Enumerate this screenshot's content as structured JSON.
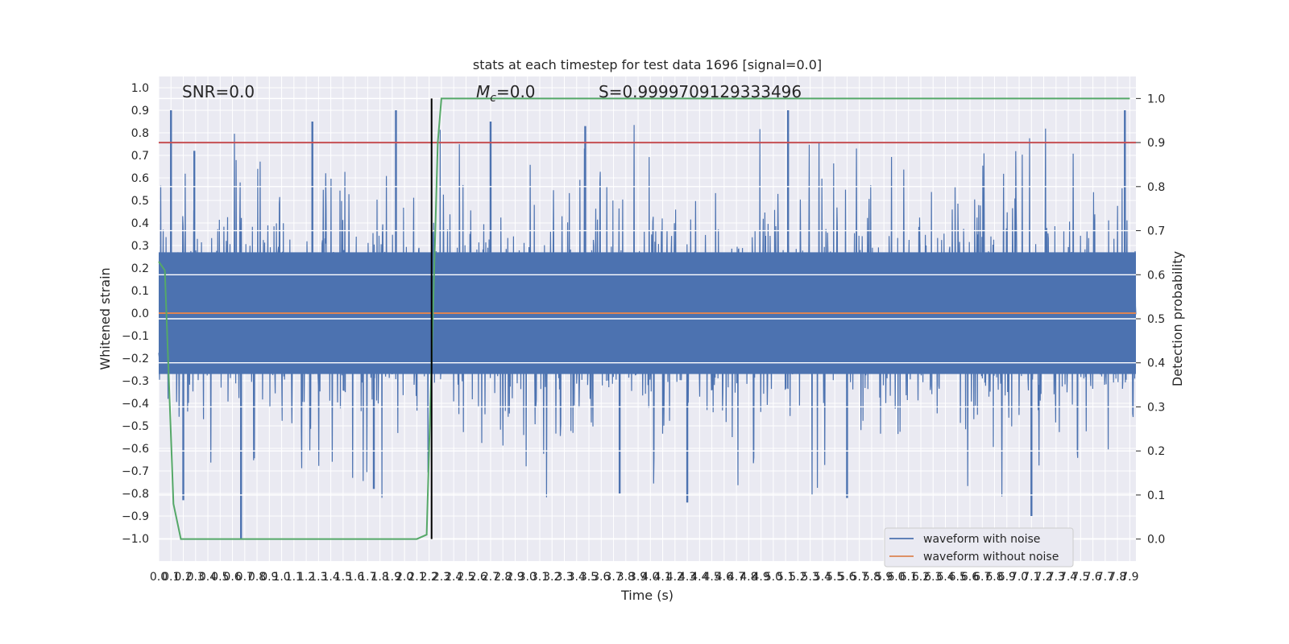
{
  "chart_data": {
    "type": "line",
    "title": "stats at each timestep for test data 1696 [signal=0.0]",
    "xlabel": "Time (s)",
    "ylabel": "Whitened strain",
    "ylabel_right": "Detection probability",
    "xlim": [
      0.0,
      7.95
    ],
    "ylim": [
      -1.1,
      1.05
    ],
    "ylim_right": [
      -0.05,
      1.05
    ],
    "x_ticks": [
      0.0,
      0.1,
      0.2,
      0.3,
      0.4,
      0.5,
      0.6,
      0.7,
      0.8,
      0.9,
      1.0,
      1.1,
      1.2,
      1.3,
      1.4,
      1.5,
      1.6,
      1.7,
      1.8,
      1.9,
      2.0,
      2.1,
      2.2,
      2.3,
      2.4,
      2.5,
      2.6,
      2.7,
      2.8,
      2.9,
      3.0,
      3.1,
      3.2,
      3.3,
      3.4,
      3.5,
      3.6,
      3.7,
      3.8,
      3.9,
      4.0,
      4.1,
      4.2,
      4.3,
      4.4,
      4.5,
      4.6,
      4.7,
      4.8,
      4.9,
      5.0,
      5.1,
      5.2,
      5.3,
      5.4,
      5.5,
      5.6,
      5.7,
      5.8,
      5.9,
      6.0,
      6.1,
      6.2,
      6.3,
      6.4,
      6.5,
      6.6,
      6.7,
      6.8,
      6.9,
      7.0,
      7.1,
      7.2,
      7.3,
      7.4,
      7.5,
      7.6,
      7.7,
      7.8,
      7.9
    ],
    "x_tick_labels": [
      "0.0",
      "0.1",
      "0.2",
      "0.3",
      "0.4",
      "0.5",
      "0.6",
      "0.7",
      "0.8",
      "0.9",
      "1.0",
      "1.1",
      "1.2",
      "1.3",
      "1.4",
      "1.5",
      "1.6",
      "1.7",
      "1.8",
      "1.9",
      "2.0",
      "2.1",
      "2.2",
      "2.3",
      "2.4",
      "2.5",
      "2.6",
      "2.7",
      "2.8",
      "2.9",
      "3.0",
      "3.1",
      "3.2",
      "3.3",
      "3.4",
      "3.5",
      "3.6",
      "3.7",
      "3.8",
      "3.9",
      "4.0",
      "4.1",
      "4.2",
      "4.3",
      "4.4",
      "4.5",
      "4.6",
      "4.7",
      "4.8",
      "4.9",
      "5.0",
      "5.1",
      "5.2",
      "5.3",
      "5.4",
      "5.5",
      "5.6",
      "5.7",
      "5.8",
      "5.9",
      "6.0",
      "6.1",
      "6.2",
      "6.3",
      "6.4",
      "6.5",
      "6.6",
      "6.7",
      "6.8",
      "6.9",
      "7.0",
      "7.1",
      "7.2",
      "7.3",
      "7.4",
      "7.5",
      "7.6",
      "7.7",
      "7.8",
      "7.9"
    ],
    "y_ticks": [
      1.0,
      0.9,
      0.8,
      0.7,
      0.6,
      0.5,
      0.4,
      0.3,
      0.2,
      0.1,
      0.0,
      -0.1,
      -0.2,
      -0.3,
      -0.4,
      -0.5,
      -0.6,
      -0.7,
      -0.8,
      -0.9,
      -1.0
    ],
    "y_tick_labels": [
      "1.0",
      "0.9",
      "0.8",
      "0.7",
      "0.6",
      "0.5",
      "0.4",
      "0.3",
      "0.2",
      "0.1",
      "0.0",
      "−0.1",
      "−0.2",
      "−0.3",
      "−0.4",
      "−0.5",
      "−0.6",
      "−0.7",
      "−0.8",
      "−0.9",
      "−1.0"
    ],
    "y_ticks_right": [
      1.0,
      0.9,
      0.8,
      0.7,
      0.6,
      0.5,
      0.4,
      0.3,
      0.2,
      0.1,
      0.0
    ],
    "y_tick_labels_right": [
      "1.0",
      "0.9",
      "0.8",
      "0.7",
      "0.6",
      "0.5",
      "0.4",
      "0.3",
      "0.2",
      "0.1",
      "0.0"
    ],
    "grid": true,
    "legend_placement": "lower-right",
    "annotations": {
      "snr": "SNR=0.0",
      "mc_symbol": "M",
      "mc_subscript": "c",
      "mc_value": "=0.0",
      "s": "S=0.9999709129333496"
    },
    "series": [
      {
        "name": "waveform with noise",
        "color": "#4c72b0",
        "style": "dense noise",
        "typical_band": [
          -0.33,
          0.33
        ],
        "peak_max": 0.9,
        "peak_min": -1.0
      },
      {
        "name": "waveform without noise",
        "color": "#dd8452",
        "x": [
          0.0,
          7.95
        ],
        "y": [
          0.0,
          0.0
        ]
      },
      {
        "color": "#55a868",
        "axis": "right",
        "x": [
          0.0,
          0.05,
          0.12,
          0.18,
          0.5,
          1.0,
          1.5,
          2.0,
          2.1,
          2.18,
          2.22,
          2.27,
          2.3,
          2.4,
          3.0,
          4.0,
          5.0,
          6.0,
          7.0,
          7.9
        ],
        "y": [
          0.63,
          0.61,
          0.08,
          0.0,
          0.0,
          0.0,
          0.0,
          0.0,
          0.0,
          0.01,
          0.4,
          0.9,
          1.0,
          1.0,
          1.0,
          1.0,
          1.0,
          1.0,
          1.0,
          1.0
        ]
      }
    ],
    "threshold_line": {
      "color": "#c44e52",
      "axis": "right",
      "value": 0.9
    },
    "vertical_marker": {
      "color": "#000000",
      "x": 2.22
    }
  }
}
